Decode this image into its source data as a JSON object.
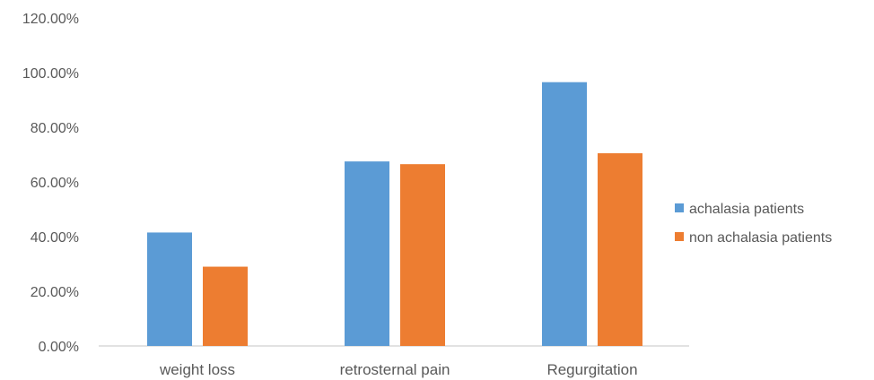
{
  "chart_data": {
    "type": "bar",
    "categories": [
      "weight loss",
      "retrosternal pain",
      "Regurgitation"
    ],
    "series": [
      {
        "name": "achalasia patients",
        "values": [
          41.5,
          67.5,
          96.5
        ],
        "color": "#5B9BD5"
      },
      {
        "name": "non achalasia patients",
        "values": [
          29,
          66.5,
          70.5
        ],
        "color": "#ED7D31"
      }
    ],
    "ylim": [
      0,
      120
    ],
    "yticks": [
      0,
      20,
      40,
      60,
      80,
      100,
      120
    ],
    "ytick_labels": [
      "0.00%",
      "20.00%",
      "40.00%",
      "60.00%",
      "80.00%",
      "100.00%",
      "120.00%"
    ],
    "grid": false,
    "legend_position": "right",
    "title": "",
    "xlabel": "",
    "ylabel": ""
  }
}
